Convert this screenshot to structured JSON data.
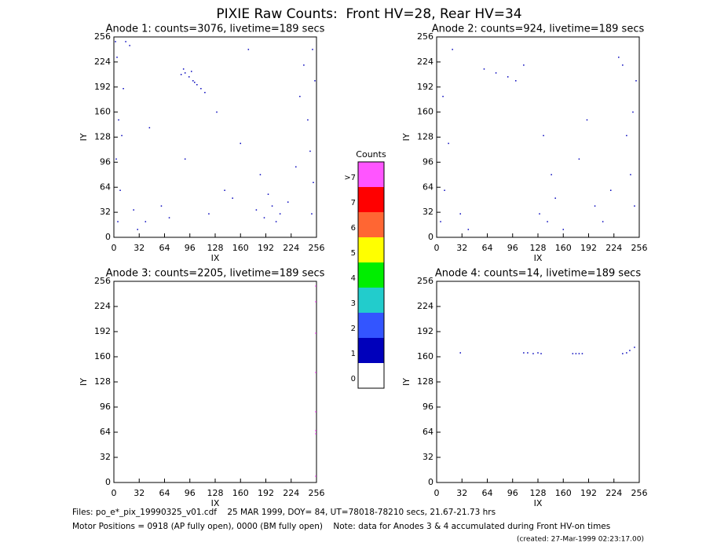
{
  "title": "PIXIE Raw Counts:  Front HV=28, Rear HV=34",
  "chart_data": [
    {
      "type": "scatter",
      "title": "Anode 1: counts=3076, livetime=189 secs",
      "xlabel": "IX",
      "ylabel": "IY",
      "xlim": [
        0,
        256
      ],
      "ylim": [
        0,
        256
      ],
      "xticks": [
        0,
        32,
        64,
        96,
        128,
        160,
        192,
        224,
        256
      ],
      "yticks": [
        0,
        32,
        64,
        96,
        128,
        160,
        192,
        224,
        256
      ],
      "color": "#0000bb",
      "x": [
        5,
        8,
        3,
        10,
        6,
        12,
        4,
        2,
        250,
        252,
        248,
        245,
        254,
        240,
        251,
        90,
        95,
        100,
        105,
        110,
        98,
        88,
        115,
        85,
        102,
        30,
        25,
        40,
        60,
        70,
        120,
        140,
        150,
        180,
        200,
        210,
        190,
        220,
        205,
        195,
        185,
        90,
        45,
        130,
        160,
        230,
        235,
        15,
        20,
        170
      ],
      "y": [
        20,
        60,
        100,
        130,
        150,
        190,
        230,
        250,
        30,
        70,
        110,
        150,
        200,
        220,
        240,
        210,
        205,
        200,
        195,
        190,
        212,
        215,
        185,
        208,
        198,
        10,
        35,
        20,
        40,
        25,
        30,
        60,
        50,
        35,
        40,
        30,
        25,
        45,
        20,
        55,
        80,
        100,
        140,
        160,
        120,
        90,
        180,
        250,
        245,
        240
      ]
    },
    {
      "type": "scatter",
      "title": "Anode 2: counts=924, livetime=189 secs",
      "xlabel": "IX",
      "ylabel": "IY",
      "xlim": [
        0,
        256
      ],
      "ylim": [
        0,
        256
      ],
      "xticks": [
        0,
        32,
        64,
        96,
        128,
        160,
        192,
        224,
        256
      ],
      "yticks": [
        0,
        32,
        64,
        96,
        128,
        160,
        192,
        224,
        256
      ],
      "color": "#0000bb",
      "x": [
        5,
        10,
        15,
        8,
        20,
        30,
        40,
        250,
        245,
        240,
        252,
        230,
        235,
        248,
        60,
        75,
        90,
        100,
        110,
        130,
        140,
        150,
        160,
        200,
        210,
        220,
        180,
        190,
        135,
        145
      ],
      "y": [
        20,
        60,
        120,
        180,
        240,
        30,
        10,
        40,
        80,
        130,
        200,
        230,
        220,
        160,
        215,
        210,
        205,
        200,
        220,
        30,
        20,
        50,
        10,
        40,
        20,
        60,
        100,
        150,
        130,
        80
      ]
    },
    {
      "type": "scatter",
      "title": "Anode 3: counts=2205, livetime=189 secs",
      "xlabel": "IX",
      "ylabel": "IY",
      "xlim": [
        0,
        256
      ],
      "ylim": [
        0,
        256
      ],
      "xticks": [
        0,
        32,
        64,
        96,
        128,
        160,
        192,
        224,
        256
      ],
      "yticks": [
        0,
        32,
        64,
        96,
        128,
        160,
        192,
        224,
        256
      ],
      "color": "#ff55ff",
      "x": [
        255,
        255,
        255,
        255,
        255,
        255,
        255,
        255
      ],
      "y": [
        250,
        230,
        190,
        140,
        90,
        66,
        62,
        8
      ]
    },
    {
      "type": "scatter",
      "title": "Anode 4: counts=14, livetime=189 secs",
      "xlabel": "IX",
      "ylabel": "IY",
      "xlim": [
        0,
        256
      ],
      "ylim": [
        0,
        256
      ],
      "xticks": [
        0,
        32,
        64,
        96,
        128,
        160,
        192,
        224,
        256
      ],
      "yticks": [
        0,
        32,
        64,
        96,
        128,
        160,
        192,
        224,
        256
      ],
      "color": "#0000bb",
      "x": [
        30,
        110,
        115,
        122,
        128,
        132,
        172,
        176,
        180,
        184,
        235,
        240,
        244,
        250
      ],
      "y": [
        165,
        165,
        165,
        164,
        165,
        164,
        164,
        164,
        164,
        164,
        164,
        165,
        168,
        172
      ]
    },
    {
      "type": "colorbar",
      "title": "Counts",
      "categories": [
        ">7",
        "7",
        "6",
        "5",
        "4",
        "3",
        "2",
        "1",
        "0"
      ],
      "colors": [
        "#ff55ff",
        "#ff0000",
        "#ff6633",
        "#ffff00",
        "#00ee00",
        "#22cccc",
        "#3355ff",
        "#0000bb",
        "#ffffff"
      ]
    }
  ],
  "footer": {
    "files": "Files: po_e*_pix_19990325_v01.cdf    25 MAR 1999, DOY= 84, UT=78018-78210 secs, 21.67-21.73 hrs",
    "motor": "Motor Positions = 0918 (AP fully open), 0000 (BM fully open)    Note: data for Anodes 3 & 4 accumulated during Front HV-on times",
    "created": "(created: 27-Mar-1999 02:23:17.00)"
  }
}
